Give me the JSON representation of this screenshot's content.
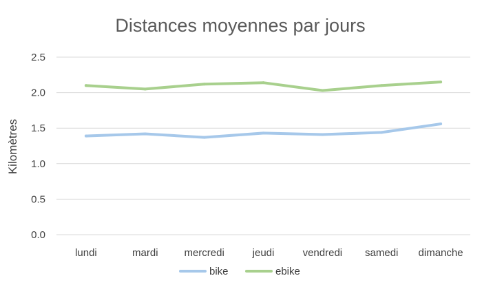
{
  "chart_data": {
    "type": "line",
    "title": "Distances moyennes par jours",
    "xlabel": "",
    "ylabel": "Kilomètres",
    "categories": [
      "lundi",
      "mardi",
      "mercredi",
      "jeudi",
      "vendredi",
      "samedi",
      "dimanche"
    ],
    "ylim": [
      0,
      2.5
    ],
    "yticks": [
      "0.0",
      "0.5",
      "1.0",
      "1.5",
      "2.0",
      "2.5"
    ],
    "grid": true,
    "legend_position": "bottom",
    "series": [
      {
        "name": "bike",
        "color": "#a6c8ea",
        "values": [
          1.39,
          1.42,
          1.37,
          1.43,
          1.41,
          1.44,
          1.56
        ]
      },
      {
        "name": "ebike",
        "color": "#a8d08d",
        "values": [
          2.1,
          2.05,
          2.12,
          2.14,
          2.03,
          2.1,
          2.15
        ]
      }
    ]
  }
}
